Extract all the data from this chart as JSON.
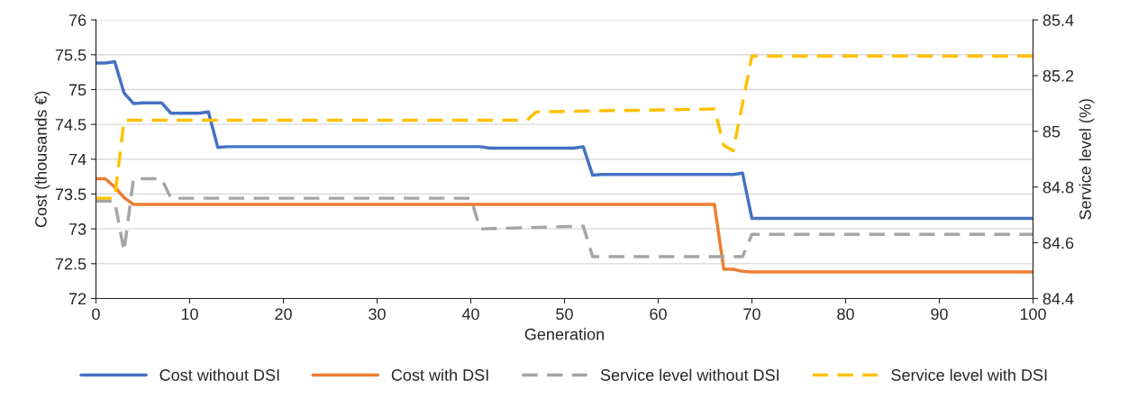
{
  "chart_data": {
    "type": "line",
    "xlabel": "Generation",
    "ylabel": "Cost (thousands €)",
    "y2label": "Service level (%)",
    "xlim": [
      0,
      100
    ],
    "xticks": [
      0,
      10,
      20,
      30,
      40,
      50,
      60,
      70,
      80,
      90,
      100
    ],
    "ylim": [
      72,
      76
    ],
    "yticks": [
      72,
      72.5,
      73,
      73.5,
      74,
      74.5,
      75,
      75.5,
      76
    ],
    "y2lim": [
      84.4,
      85.4
    ],
    "y2ticks": [
      84.4,
      84.6,
      84.8,
      85,
      85.2,
      85.4
    ],
    "grid": "y",
    "legend": "bottom",
    "marker": "none",
    "series": [
      {
        "name": "Cost without DSI",
        "color": "#4472c4",
        "line_style": "solid",
        "x": [
          0,
          1,
          2,
          3,
          4,
          5,
          7,
          8,
          11,
          12,
          13,
          14,
          41,
          42,
          51,
          52,
          53,
          54,
          68,
          69,
          70,
          71,
          100
        ],
        "values": [
          75.38,
          75.38,
          75.4,
          74.95,
          74.8,
          74.81,
          74.81,
          74.66,
          74.66,
          74.68,
          74.17,
          74.18,
          74.18,
          74.16,
          74.16,
          74.18,
          73.77,
          73.78,
          73.78,
          73.8,
          73.15,
          73.15,
          73.15
        ]
      },
      {
        "name": "Cost with DSI",
        "color": "#ed7d31",
        "line_style": "solid",
        "x": [
          0,
          1,
          2,
          3,
          4,
          66,
          67,
          68,
          69,
          70,
          100
        ],
        "values": [
          73.72,
          73.72,
          73.6,
          73.45,
          73.35,
          73.35,
          72.42,
          72.42,
          72.39,
          72.38,
          72.38
        ]
      },
      {
        "name": "Service level without DSI",
        "color": "#a5a5a5",
        "line_style": "dashed",
        "axis": "y2",
        "x": [
          0,
          2,
          3,
          4,
          7,
          8,
          40,
          41,
          52,
          53,
          69,
          70,
          100
        ],
        "values": [
          84.75,
          84.75,
          84.57,
          84.83,
          84.83,
          84.76,
          84.76,
          84.65,
          84.66,
          84.55,
          84.55,
          84.63,
          84.63
        ]
      },
      {
        "name": "Service level with DSI",
        "color": "#ffc000",
        "line_style": "dashed",
        "axis": "y2",
        "x": [
          0,
          2,
          3,
          46,
          47,
          66,
          67,
          68,
          69,
          70,
          100
        ],
        "values": [
          84.76,
          84.76,
          85.04,
          85.04,
          85.07,
          85.08,
          84.95,
          84.93,
          85.1,
          85.27,
          85.27
        ]
      }
    ]
  }
}
